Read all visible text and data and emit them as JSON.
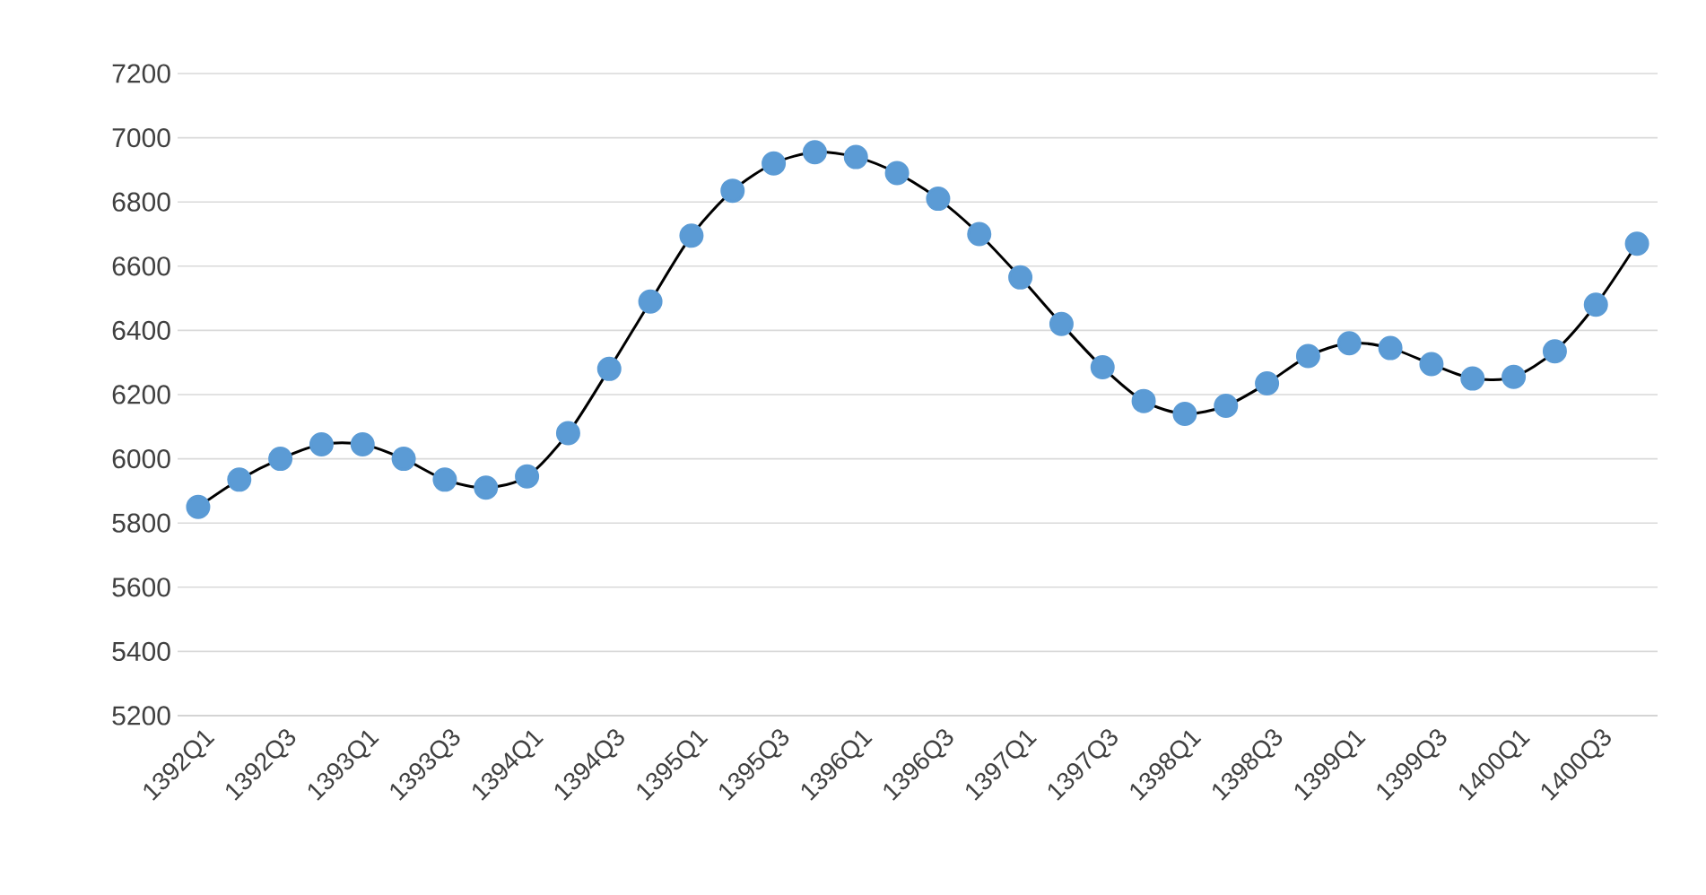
{
  "chart_data": {
    "type": "line",
    "categories": [
      "1392Q1",
      null,
      "1392Q3",
      null,
      "1393Q1",
      null,
      "1393Q3",
      null,
      "1394Q1",
      null,
      "1394Q3",
      null,
      "1395Q1",
      null,
      "1395Q3",
      null,
      "1396Q1",
      null,
      "1396Q3",
      null,
      "1397Q1",
      null,
      "1397Q3",
      null,
      "1398Q1",
      null,
      "1398Q3",
      null,
      "1399Q1",
      null,
      "1399Q3",
      null,
      "1400Q1",
      null,
      "1400Q3",
      null
    ],
    "series": [
      {
        "color": "#5b9bd5",
        "values": [
          5850,
          5935,
          6000,
          6045,
          6045,
          6000,
          5935,
          5910,
          5945,
          6080,
          6280,
          6490,
          6695,
          6835,
          6920,
          6955,
          6940,
          6890,
          6810,
          6700,
          6565,
          6420,
          6285,
          6180,
          6140,
          6165,
          6235,
          6320,
          6360,
          6345,
          6295,
          6250,
          6255,
          6335,
          6480,
          6670
        ]
      }
    ],
    "ylim": [
      5200,
      7200
    ],
    "yticks": [
      5200,
      5400,
      5600,
      5800,
      6000,
      6200,
      6400,
      6600,
      6800,
      7000,
      7200
    ],
    "grid": "y",
    "marker": "circle",
    "line_style": "solid"
  }
}
